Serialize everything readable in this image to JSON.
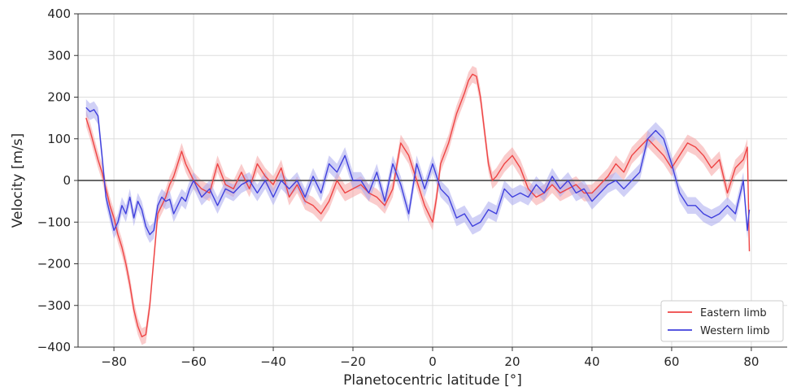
{
  "chart_data": {
    "type": "line",
    "title": "",
    "xlabel": "Planetocentric latitude [°]",
    "ylabel": "Velocity [m/s]",
    "xlim": [
      -89,
      89
    ],
    "ylim": [
      -400,
      400
    ],
    "xticks": [
      -80,
      -60,
      -40,
      -20,
      0,
      20,
      40,
      60,
      80
    ],
    "xtick_labels": [
      "−80",
      "−60",
      "−40",
      "−20",
      "0",
      "20",
      "40",
      "60",
      "80"
    ],
    "yticks": [
      -400,
      -300,
      -200,
      -100,
      0,
      100,
      200,
      300,
      400
    ],
    "ytick_labels": [
      "−400",
      "−300",
      "−200",
      "−100",
      "0",
      "100",
      "200",
      "300",
      "400"
    ],
    "grid": true,
    "zero_line": true,
    "legend_position": "bottom-right",
    "band_halfwidth": 20,
    "series": [
      {
        "name": "Eastern limb",
        "color": "#ee4444",
        "band_color": "#f5a3a3",
        "x": [
          -87,
          -86,
          -85,
          -84,
          -83,
          -82,
          -81,
          -80,
          -79,
          -78,
          -77,
          -76,
          -75,
          -74,
          -73,
          -72,
          -71,
          -70,
          -69,
          -68,
          -67,
          -66,
          -65,
          -64,
          -63,
          -62,
          -61,
          -60,
          -58,
          -56,
          -54,
          -52,
          -50,
          -48,
          -46,
          -44,
          -42,
          -40,
          -38,
          -36,
          -34,
          -32,
          -30,
          -28,
          -26,
          -24,
          -22,
          -20,
          -18,
          -16,
          -14,
          -12,
          -10,
          -8,
          -6,
          -5,
          -4,
          -2,
          0,
          1,
          2,
          4,
          6,
          8,
          9,
          10,
          11,
          12,
          13,
          14,
          15,
          16,
          18,
          20,
          22,
          24,
          26,
          28,
          30,
          32,
          34,
          36,
          38,
          40,
          42,
          44,
          46,
          48,
          50,
          52,
          54,
          56,
          58,
          60,
          62,
          64,
          66,
          68,
          70,
          72,
          74,
          76,
          78,
          79,
          79.5
        ],
        "y": [
          150,
          120,
          85,
          50,
          20,
          -20,
          -60,
          -90,
          -130,
          -160,
          -200,
          -250,
          -310,
          -350,
          -375,
          -370,
          -300,
          -190,
          -80,
          -60,
          -40,
          -10,
          10,
          40,
          70,
          40,
          20,
          0,
          -20,
          -30,
          40,
          -10,
          -20,
          20,
          -20,
          40,
          10,
          -10,
          30,
          -40,
          -10,
          -50,
          -60,
          -80,
          -50,
          0,
          -30,
          -20,
          -10,
          -30,
          -40,
          -60,
          -20,
          90,
          60,
          30,
          0,
          -60,
          -100,
          -40,
          40,
          90,
          160,
          210,
          240,
          255,
          250,
          200,
          120,
          40,
          0,
          10,
          40,
          60,
          30,
          -20,
          -40,
          -30,
          -10,
          -30,
          -20,
          -10,
          -30,
          -30,
          -10,
          10,
          40,
          20,
          60,
          80,
          100,
          80,
          60,
          30,
          60,
          90,
          80,
          60,
          30,
          50,
          -30,
          30,
          50,
          80,
          -170
        ]
      },
      {
        "name": "Western limb",
        "color": "#4040dd",
        "band_color": "#aaaaee",
        "x": [
          -87,
          -86,
          -85,
          -84,
          -83,
          -82,
          -81,
          -80,
          -79,
          -78,
          -77,
          -76,
          -75,
          -74,
          -73,
          -72,
          -71,
          -70,
          -69,
          -68,
          -67,
          -66,
          -65,
          -64,
          -63,
          -62,
          -61,
          -60,
          -58,
          -56,
          -54,
          -52,
          -50,
          -48,
          -46,
          -44,
          -42,
          -40,
          -38,
          -36,
          -34,
          -32,
          -30,
          -28,
          -26,
          -24,
          -22,
          -20,
          -18,
          -16,
          -14,
          -12,
          -10,
          -8,
          -6,
          -4,
          -2,
          0,
          2,
          4,
          6,
          8,
          10,
          12,
          14,
          16,
          18,
          20,
          22,
          24,
          26,
          28,
          30,
          32,
          34,
          36,
          38,
          40,
          42,
          44,
          46,
          48,
          50,
          52,
          54,
          56,
          58,
          60,
          62,
          64,
          66,
          68,
          70,
          72,
          74,
          76,
          78,
          79,
          79.5
        ],
        "y": [
          175,
          165,
          170,
          155,
          60,
          -40,
          -80,
          -120,
          -100,
          -60,
          -80,
          -40,
          -90,
          -50,
          -70,
          -110,
          -130,
          -120,
          -60,
          -40,
          -50,
          -45,
          -80,
          -60,
          -40,
          -50,
          -20,
          0,
          -40,
          -20,
          -60,
          -20,
          -30,
          -10,
          0,
          -30,
          0,
          -40,
          0,
          -20,
          0,
          -40,
          10,
          -30,
          40,
          20,
          60,
          0,
          0,
          -30,
          20,
          -50,
          40,
          -10,
          -80,
          40,
          -20,
          40,
          -20,
          -40,
          -90,
          -80,
          -110,
          -100,
          -70,
          -80,
          -20,
          -40,
          -30,
          -40,
          -10,
          -30,
          10,
          -20,
          0,
          -30,
          -20,
          -50,
          -30,
          -10,
          0,
          -20,
          0,
          20,
          100,
          120,
          100,
          40,
          -30,
          -60,
          -60,
          -80,
          -90,
          -80,
          -60,
          -80,
          0,
          -120,
          -70
        ]
      }
    ]
  }
}
